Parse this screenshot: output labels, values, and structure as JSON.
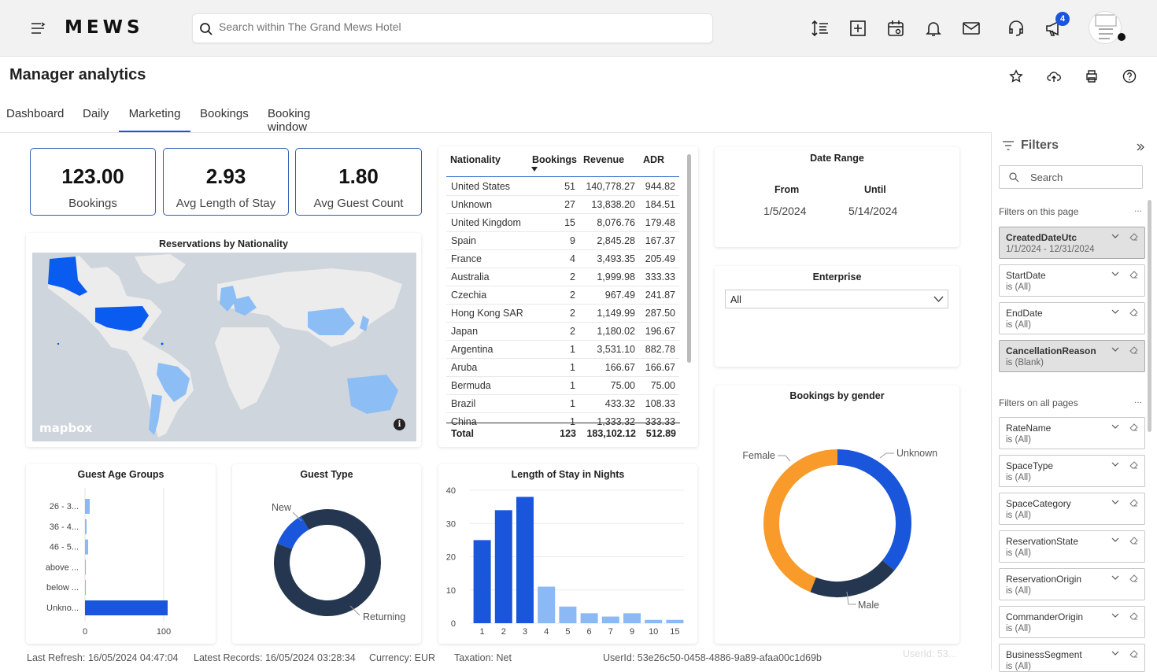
{
  "app": {
    "logo": "MEWS"
  },
  "search": {
    "placeholder": "Search within The Grand Mews Hotel"
  },
  "notifications": {
    "badge": "4"
  },
  "page": {
    "title": "Manager analytics"
  },
  "tabs": [
    {
      "label": "Dashboard"
    },
    {
      "label": "Daily"
    },
    {
      "label": "Marketing"
    },
    {
      "label": "Bookings"
    },
    {
      "label": "Booking window"
    }
  ],
  "active_tab": "Marketing",
  "kpis": [
    {
      "value": "123.00",
      "label": "Bookings"
    },
    {
      "value": "2.93",
      "label": "Avg Length of Stay"
    },
    {
      "value": "1.80",
      "label": "Avg Guest Count"
    }
  ],
  "map": {
    "title": "Reservations by Nationality",
    "attribution": "mapbox",
    "info": "i"
  },
  "nationality_table": {
    "headers": [
      "Nationality",
      "Bookings",
      "Revenue",
      "ADR"
    ],
    "rows": [
      [
        "United States",
        "51",
        "140,778.27",
        "944.82"
      ],
      [
        "Unknown",
        "27",
        "13,838.20",
        "184.51"
      ],
      [
        "United Kingdom",
        "15",
        "8,076.76",
        "179.48"
      ],
      [
        "Spain",
        "9",
        "2,845.28",
        "167.37"
      ],
      [
        "France",
        "4",
        "3,493.35",
        "205.49"
      ],
      [
        "Australia",
        "2",
        "1,999.98",
        "333.33"
      ],
      [
        "Czechia",
        "2",
        "967.49",
        "241.87"
      ],
      [
        "Hong Kong SAR",
        "2",
        "1,149.99",
        "287.50"
      ],
      [
        "Japan",
        "2",
        "1,180.02",
        "196.67"
      ],
      [
        "Argentina",
        "1",
        "3,531.10",
        "882.78"
      ],
      [
        "Aruba",
        "1",
        "166.67",
        "166.67"
      ],
      [
        "Bermuda",
        "1",
        "75.00",
        "75.00"
      ],
      [
        "Brazil",
        "1",
        "433.32",
        "108.33"
      ],
      [
        "China",
        "1",
        "1,333.32",
        "333.33"
      ]
    ],
    "total": [
      "Total",
      "123",
      "183,102.12",
      "512.89"
    ]
  },
  "date_range": {
    "title": "Date Range",
    "from_label": "From",
    "until_label": "Until",
    "from": "1/5/2024",
    "until": "5/14/2024"
  },
  "enterprise": {
    "title": "Enterprise",
    "value": "All"
  },
  "filters": {
    "title": "Filters",
    "search_placeholder": "Search",
    "this_page_label": "Filters on this page",
    "all_pages_label": "Filters on all pages",
    "more": "...",
    "this_page": [
      {
        "name": "CreatedDateUtc",
        "value": "1/1/2024 - 12/31/2024",
        "applied": true
      },
      {
        "name": "StartDate",
        "value": "is (All)",
        "applied": false
      },
      {
        "name": "EndDate",
        "value": "is (All)",
        "applied": false
      },
      {
        "name": "CancellationReason",
        "value": "is (Blank)",
        "applied": true
      }
    ],
    "all_pages": [
      {
        "name": "RateName",
        "value": "is (All)"
      },
      {
        "name": "SpaceType",
        "value": "is (All)"
      },
      {
        "name": "SpaceCategory",
        "value": "is (All)"
      },
      {
        "name": "ReservationState",
        "value": "is (All)"
      },
      {
        "name": "ReservationOrigin",
        "value": "is (All)"
      },
      {
        "name": "CommanderOrigin",
        "value": "is (All)"
      },
      {
        "name": "BusinessSegment",
        "value": "is (All)"
      }
    ]
  },
  "footer": {
    "last_refresh": "Last Refresh: 16/05/2024 04:47:04",
    "latest_records": "Latest Records: 16/05/2024 03:28:34",
    "currency": "Currency: EUR",
    "taxation": "Taxation: Net",
    "user_id": "UserId: 53e26c50-0458-4886-9a89-afaa00c1d69b",
    "user_id_faded": "UserId: 53..."
  },
  "colors": {
    "primary": "#1a56db",
    "bar_light": "#8bb9f5",
    "navy": "#253750",
    "orange": "#f99b2b"
  },
  "chart_data": [
    {
      "type": "bar",
      "orientation": "horizontal",
      "title": "Guest Age Groups",
      "categories": [
        "26 - 3...",
        "36 - 4...",
        "46 - 5...",
        "above ...",
        "below ...",
        "Unkno..."
      ],
      "values": [
        6,
        2,
        4,
        1,
        1,
        105
      ],
      "xlim": [
        0,
        100
      ],
      "xticks": [
        "0",
        "100"
      ]
    },
    {
      "type": "pie",
      "donut": true,
      "title": "Guest Type",
      "categories": [
        "New",
        "Returning"
      ],
      "values": [
        11,
        89
      ]
    },
    {
      "type": "bar",
      "title": "Length of Stay in Nights",
      "categories": [
        "1",
        "2",
        "3",
        "4",
        "5",
        "6",
        "7",
        "9",
        "10",
        "15"
      ],
      "values": [
        25,
        34,
        38,
        11,
        5,
        3,
        2,
        3,
        1,
        1
      ],
      "ylim": [
        0,
        40
      ],
      "yticks": [
        "0",
        "10",
        "20",
        "30",
        "40"
      ]
    },
    {
      "type": "pie",
      "donut": true,
      "title": "Bookings by gender",
      "categories": [
        "Unknown",
        "Male",
        "Female"
      ],
      "values": [
        36,
        20,
        44
      ]
    }
  ]
}
